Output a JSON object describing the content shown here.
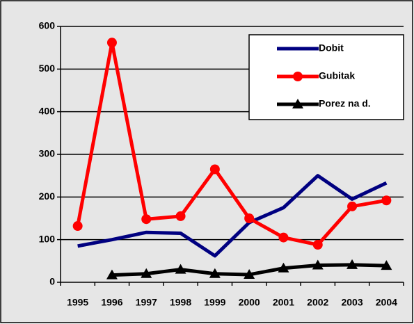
{
  "chart_data": {
    "type": "line",
    "categories": [
      "1995",
      "1996",
      "1997",
      "1998",
      "1999",
      "2000",
      "2001",
      "2002",
      "2003",
      "2004"
    ],
    "series": [
      {
        "name": "Dobit",
        "color": "#000080",
        "marker": "none",
        "values": [
          85,
          100,
          117,
          115,
          62,
          140,
          175,
          250,
          195,
          233
        ]
      },
      {
        "name": "Gubitak",
        "color": "#ff0000",
        "marker": "circle",
        "values": [
          132,
          562,
          148,
          155,
          265,
          150,
          105,
          88,
          178,
          192
        ]
      },
      {
        "name": "Porez na d.",
        "color": "#000000",
        "marker": "triangle",
        "values": [
          null,
          17,
          20,
          30,
          20,
          18,
          33,
          40,
          41,
          39
        ]
      }
    ],
    "ylim": [
      0,
      600
    ],
    "yticks": [
      0,
      100,
      200,
      300,
      400,
      500,
      600
    ],
    "grid": true,
    "legend": "top-right"
  }
}
